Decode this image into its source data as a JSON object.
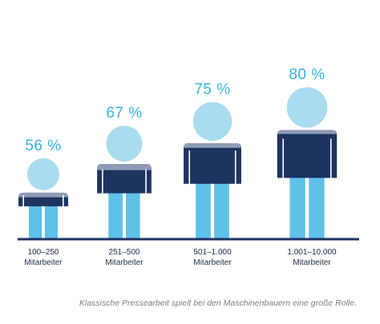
{
  "chart_data": {
    "type": "bar",
    "categories": [
      [
        "100–250",
        "Mitarbeiter"
      ],
      [
        "251–500",
        "Mitarbeiter"
      ],
      [
        "501–1.000",
        "Mitarbeiter"
      ],
      [
        "1.001–10.000",
        "Mitarbeiter"
      ]
    ],
    "values": [
      56,
      67,
      75,
      80
    ],
    "value_labels": [
      "56 %",
      "67 %",
      "75 %",
      "80 %"
    ],
    "unit": "%",
    "caption": "Klassische Pressearbeit spielt bei den Maschinenbauern eine große Rolle.",
    "colors": {
      "head": "#a9dcee",
      "shirt_light": "#8f9bb5",
      "shirt_dark": "#1d3461",
      "legs": "#5ec1e8",
      "baseline": "#1d3461",
      "label": "#35b3e0"
    }
  }
}
